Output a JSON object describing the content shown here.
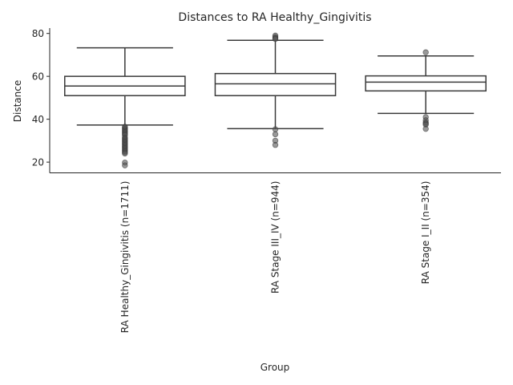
{
  "chart_data": {
    "type": "box",
    "title": "Distances to RA Healthy_Gingivitis",
    "xlabel": "Group",
    "ylabel": "Distance",
    "ylim": [
      15,
      82.5
    ],
    "yticks": [
      20,
      40,
      60,
      80
    ],
    "grid": false,
    "box_color": "#3a3a3a",
    "outlier_color": "#555555",
    "groups": [
      {
        "label": "RA Healthy_Gingivitis (n=1711)",
        "whisker_low": 37.3,
        "q1": 51.0,
        "median": 55.5,
        "q3": 60.0,
        "whisker_high": 73.3,
        "outliers": [
          36.5,
          36.0,
          35.5,
          35.0,
          34.5,
          34.0,
          33.5,
          33.0,
          32.5,
          31.5,
          31.0,
          30.5,
          30.0,
          29.5,
          29.0,
          28.5,
          28.0,
          27.5,
          27.0,
          26.5,
          26.0,
          25.5,
          25.0,
          24.5,
          24.0,
          19.8,
          18.5
        ]
      },
      {
        "label": "RA Stage III_IV (n=944)",
        "whisker_low": 35.6,
        "q1": 51.0,
        "median": 56.5,
        "q3": 61.3,
        "whisker_high": 76.8,
        "outliers": [
          79.0,
          78.3,
          77.8,
          77.4,
          35.3,
          33.0,
          30.0,
          28.0
        ]
      },
      {
        "label": "RA Stage I_II (n=354)",
        "whisker_low": 42.7,
        "q1": 53.2,
        "median": 57.3,
        "q3": 60.2,
        "whisker_high": 69.5,
        "outliers": [
          71.2,
          41.0,
          39.5,
          38.5,
          38.0,
          37.5,
          35.5
        ]
      }
    ]
  }
}
